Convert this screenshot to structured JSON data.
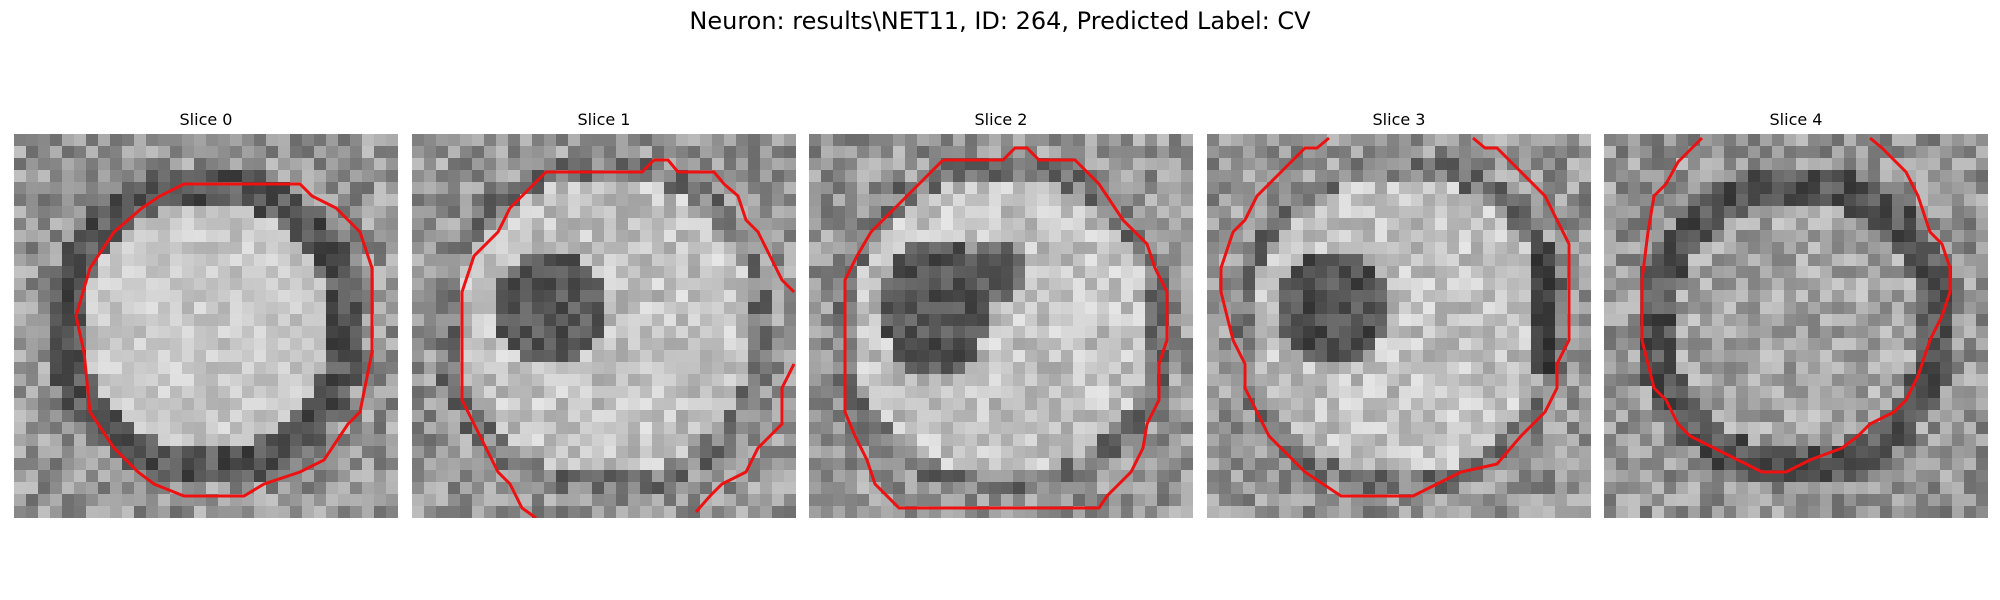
{
  "figure": {
    "title": "Neuron: results\\NET11, ID: 264, Predicted Label: CV"
  },
  "panels": [
    {
      "title": "Slice 0"
    },
    {
      "title": "Slice 1"
    },
    {
      "title": "Slice 2"
    },
    {
      "title": "Slice 3"
    },
    {
      "title": "Slice 4"
    }
  ],
  "colors": {
    "contour": "#ee1111",
    "background": "#ffffff"
  }
}
